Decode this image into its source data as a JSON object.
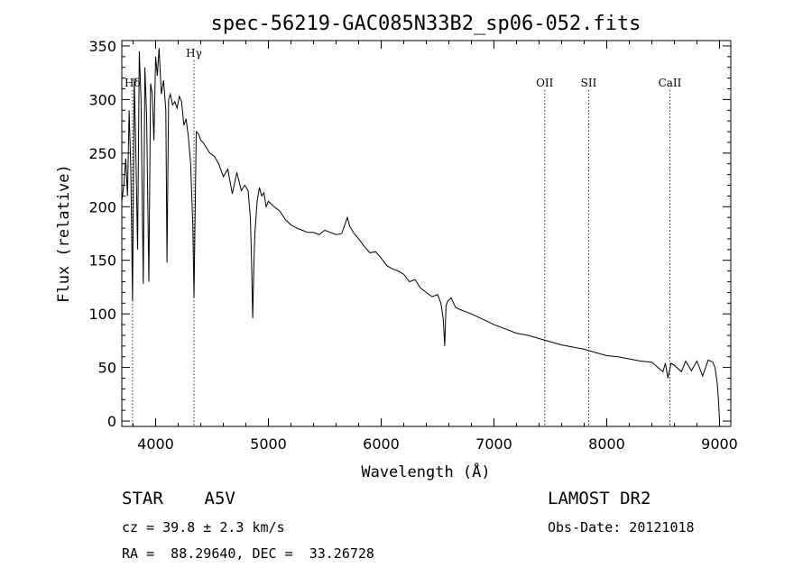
{
  "chart_data": {
    "type": "line",
    "title": "spec-56219-GAC085N33B2_sp06-052.fits",
    "xlabel": "Wavelength (Å)",
    "ylabel": "Flux (relative)",
    "xlim": [
      3700,
      9100
    ],
    "ylim": [
      -5,
      355
    ],
    "xticks": [
      4000,
      5000,
      6000,
      7000,
      8000,
      9000
    ],
    "xtick_labels": [
      "4000",
      "5000",
      "6000",
      "7000",
      "8000",
      "9000"
    ],
    "yticks": [
      0,
      50,
      100,
      150,
      200,
      250,
      300,
      350
    ],
    "ytick_labels": [
      "0",
      "50",
      "100",
      "150",
      "200",
      "250",
      "300",
      "350"
    ],
    "line_markers": [
      {
        "label": "Hδ",
        "x": 3795
      },
      {
        "label": "Hγ",
        "x": 4340
      },
      {
        "label": "OII",
        "x": 7450
      },
      {
        "label": "SII",
        "x": 7840
      },
      {
        "label": "CaII",
        "x": 8560
      }
    ],
    "series": [
      {
        "name": "flux",
        "x": [
          3700,
          3720,
          3735,
          3750,
          3765,
          3780,
          3795,
          3810,
          3825,
          3840,
          3855,
          3870,
          3890,
          3905,
          3920,
          3940,
          3955,
          3970,
          3985,
          4000,
          4015,
          4030,
          4050,
          4070,
          4090,
          4101,
          4115,
          4130,
          4150,
          4170,
          4190,
          4210,
          4230,
          4250,
          4270,
          4290,
          4310,
          4330,
          4340,
          4350,
          4360,
          4380,
          4400,
          4420,
          4450,
          4480,
          4520,
          4560,
          4600,
          4640,
          4680,
          4720,
          4760,
          4790,
          4820,
          4840,
          4850,
          4861,
          4872,
          4880,
          4900,
          4920,
          4940,
          4960,
          4980,
          5000,
          5050,
          5100,
          5150,
          5200,
          5250,
          5300,
          5350,
          5400,
          5450,
          5500,
          5550,
          5600,
          5650,
          5700,
          5720,
          5760,
          5800,
          5850,
          5900,
          5950,
          6000,
          6050,
          6100,
          6150,
          6200,
          6250,
          6300,
          6350,
          6400,
          6450,
          6500,
          6530,
          6550,
          6563,
          6575,
          6590,
          6620,
          6660,
          6700,
          6750,
          6800,
          6900,
          7000,
          7100,
          7200,
          7300,
          7400,
          7500,
          7600,
          7700,
          7800,
          7900,
          8000,
          8100,
          8200,
          8300,
          8400,
          8498,
          8520,
          8542,
          8570,
          8600,
          8662,
          8700,
          8750,
          8800,
          8850,
          8900,
          8940,
          8960,
          8980,
          8990,
          9000
        ],
        "values": [
          205,
          222,
          245,
          210,
          290,
          235,
          112,
          320,
          250,
          160,
          345,
          300,
          128,
          330,
          285,
          130,
          315,
          305,
          262,
          340,
          322,
          348,
          305,
          318,
          290,
          148,
          300,
          305,
          295,
          298,
          292,
          303,
          298,
          276,
          282,
          265,
          240,
          180,
          115,
          195,
          270,
          268,
          262,
          260,
          255,
          250,
          247,
          240,
          228,
          235,
          212,
          232,
          215,
          220,
          215,
          190,
          150,
          96,
          150,
          175,
          205,
          218,
          210,
          213,
          200,
          205,
          200,
          196,
          188,
          183,
          180,
          178,
          176,
          176,
          174,
          178,
          176,
          174,
          175,
          190,
          182,
          175,
          170,
          163,
          157,
          158,
          152,
          145,
          142,
          140,
          137,
          130,
          132,
          124,
          120,
          116,
          118,
          110,
          95,
          70,
          108,
          112,
          115,
          106,
          104,
          102,
          100,
          95,
          90,
          86,
          82,
          80,
          77,
          74,
          71,
          69,
          67,
          64,
          61,
          60,
          58,
          56,
          55,
          46,
          54,
          40,
          54,
          52,
          46,
          56,
          47,
          56,
          42,
          57,
          55,
          50,
          35,
          20,
          0
        ]
      }
    ]
  },
  "info": {
    "object_line": "STAR    A5V",
    "survey": "LAMOST DR2",
    "cz_line": "cz = 39.8 ± 2.3 km/s",
    "obs_date_line": "Obs-Date: 20121018",
    "radec_line": "RA =  88.29640, DEC =  33.26728"
  }
}
